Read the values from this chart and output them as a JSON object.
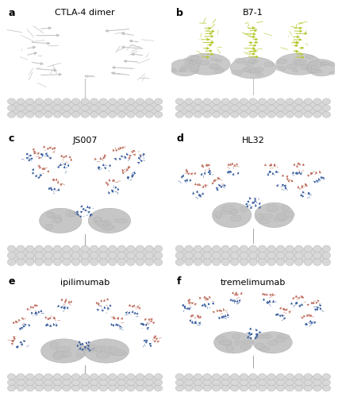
{
  "panel_labels": [
    "a",
    "b",
    "c",
    "d",
    "e",
    "f"
  ],
  "panel_titles": [
    "CTLA-4 dimer",
    "B7-1",
    "JS007",
    "HL32",
    "ipilimumab",
    "tremelimumab"
  ],
  "background_color": "#ffffff",
  "light_gray": "#c0c0c0",
  "dark_gray": "#808080",
  "mid_gray": "#a0a0a0",
  "blue": "#3a5fa0",
  "salmon": "#c07060",
  "lemon": "#b8c830",
  "membrane_color": "#d8d8d8",
  "membrane_stroke": "#b0b0b0",
  "label_fontsize": 9,
  "title_fontsize": 8
}
